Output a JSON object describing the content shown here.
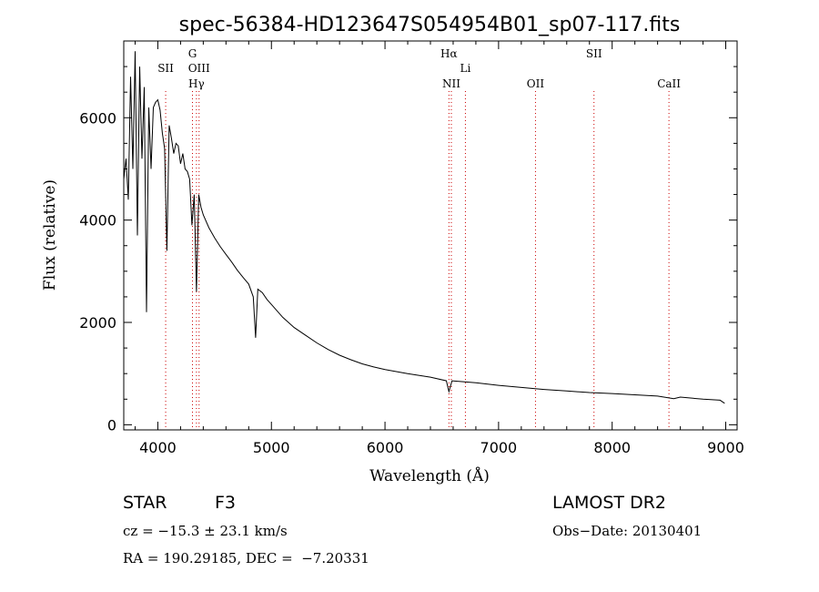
{
  "chart_data": {
    "type": "line",
    "title": "spec-56384-HD123647S054954B01_sp07-117.fits",
    "xlabel": "Wavelength (Å)",
    "ylabel": "Flux (relative)",
    "xlim": [
      3700,
      9100
    ],
    "ylim": [
      -100,
      7500
    ],
    "xticks": [
      4000,
      5000,
      6000,
      7000,
      8000,
      9000
    ],
    "yticks": [
      0,
      2000,
      4000,
      6000
    ],
    "grid": false,
    "line_color": "#000000",
    "marker_color": "#cc0000",
    "spectral_lines": [
      {
        "label": "SII",
        "x": 4069,
        "row": 2
      },
      {
        "label": "G",
        "x": 4305,
        "row": 1
      },
      {
        "label": "OIII",
        "x": 4363,
        "row": 2
      },
      {
        "label": "Hγ",
        "x": 4340,
        "row": 3
      },
      {
        "label": "Hα",
        "x": 6563,
        "row": 1
      },
      {
        "label": "NII",
        "x": 6584,
        "row": 3
      },
      {
        "label": "Li",
        "x": 6708,
        "row": 2
      },
      {
        "label": "OII",
        "x": 7325,
        "row": 3
      },
      {
        "label": "SII",
        "x": 7840,
        "row": 1
      },
      {
        "label": "CaII",
        "x": 8500,
        "row": 3
      }
    ],
    "series": [
      {
        "x": [
          3700,
          3720,
          3740,
          3760,
          3780,
          3800,
          3820,
          3840,
          3860,
          3880,
          3900,
          3920,
          3940,
          3960,
          3980,
          4000,
          4020,
          4040,
          4060,
          4080,
          4100,
          4120,
          4140,
          4160,
          4180,
          4200,
          4220,
          4240,
          4260,
          4280,
          4300,
          4320,
          4340,
          4360,
          4380,
          4400,
          4450,
          4500,
          4550,
          4600,
          4650,
          4700,
          4750,
          4800,
          4840,
          4861,
          4880,
          4920,
          4960,
          5000,
          5100,
          5200,
          5300,
          5400,
          5500,
          5600,
          5700,
          5800,
          5900,
          6000,
          6200,
          6400,
          6540,
          6563,
          6590,
          6700,
          6800,
          7000,
          7200,
          7400,
          7600,
          7800,
          8000,
          8200,
          8400,
          8542,
          8600,
          8800,
          8950,
          8990
        ],
        "values": [
          4800,
          5200,
          4400,
          6800,
          5000,
          7300,
          3700,
          7000,
          5200,
          6600,
          2200,
          6200,
          5000,
          6200,
          6300,
          6350,
          6150,
          5700,
          5400,
          3400,
          5850,
          5600,
          5300,
          5500,
          5450,
          5100,
          5300,
          5000,
          4950,
          4800,
          3900,
          4500,
          2600,
          4500,
          4250,
          4100,
          3850,
          3650,
          3480,
          3330,
          3180,
          3020,
          2880,
          2750,
          2500,
          1700,
          2650,
          2580,
          2450,
          2350,
          2100,
          1900,
          1750,
          1600,
          1470,
          1360,
          1270,
          1190,
          1130,
          1080,
          1000,
          930,
          860,
          650,
          860,
          840,
          820,
          770,
          730,
          690,
          660,
          630,
          610,
          585,
          560,
          510,
          540,
          500,
          480,
          420
        ]
      }
    ]
  },
  "info": {
    "object_class": "STAR",
    "subclass": "F3",
    "survey": "LAMOST DR2",
    "redshift": "cz = −15.3 ± 23.1 km/s",
    "obs_date": "Obs−Date: 20130401",
    "coords": "RA = 190.29185, DEC =  −7.20331"
  }
}
